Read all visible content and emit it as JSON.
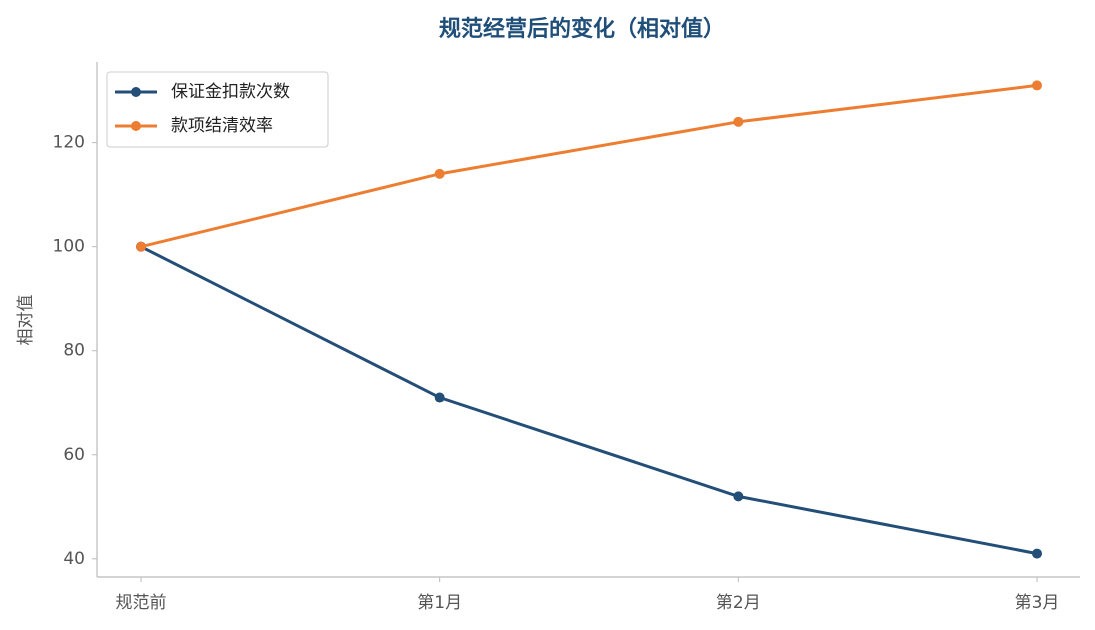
{
  "chart_data": {
    "type": "line",
    "title": "规范经营后的变化（相对值）",
    "y_label": "相对值",
    "categories": [
      "规范前",
      "第1月",
      "第2月",
      "第3月"
    ],
    "series": [
      {
        "name": "保证金扣款次数",
        "color": "#234e78",
        "values": [
          100,
          71,
          52,
          41
        ]
      },
      {
        "name": "款项结清效率",
        "color": "#ed7d31",
        "values": [
          100,
          114,
          124,
          131
        ]
      }
    ],
    "ylim": [
      36.5,
      135.5
    ],
    "yticks": [
      40,
      60,
      80,
      100,
      120
    ],
    "grid": false,
    "legend": "upper-left"
  }
}
